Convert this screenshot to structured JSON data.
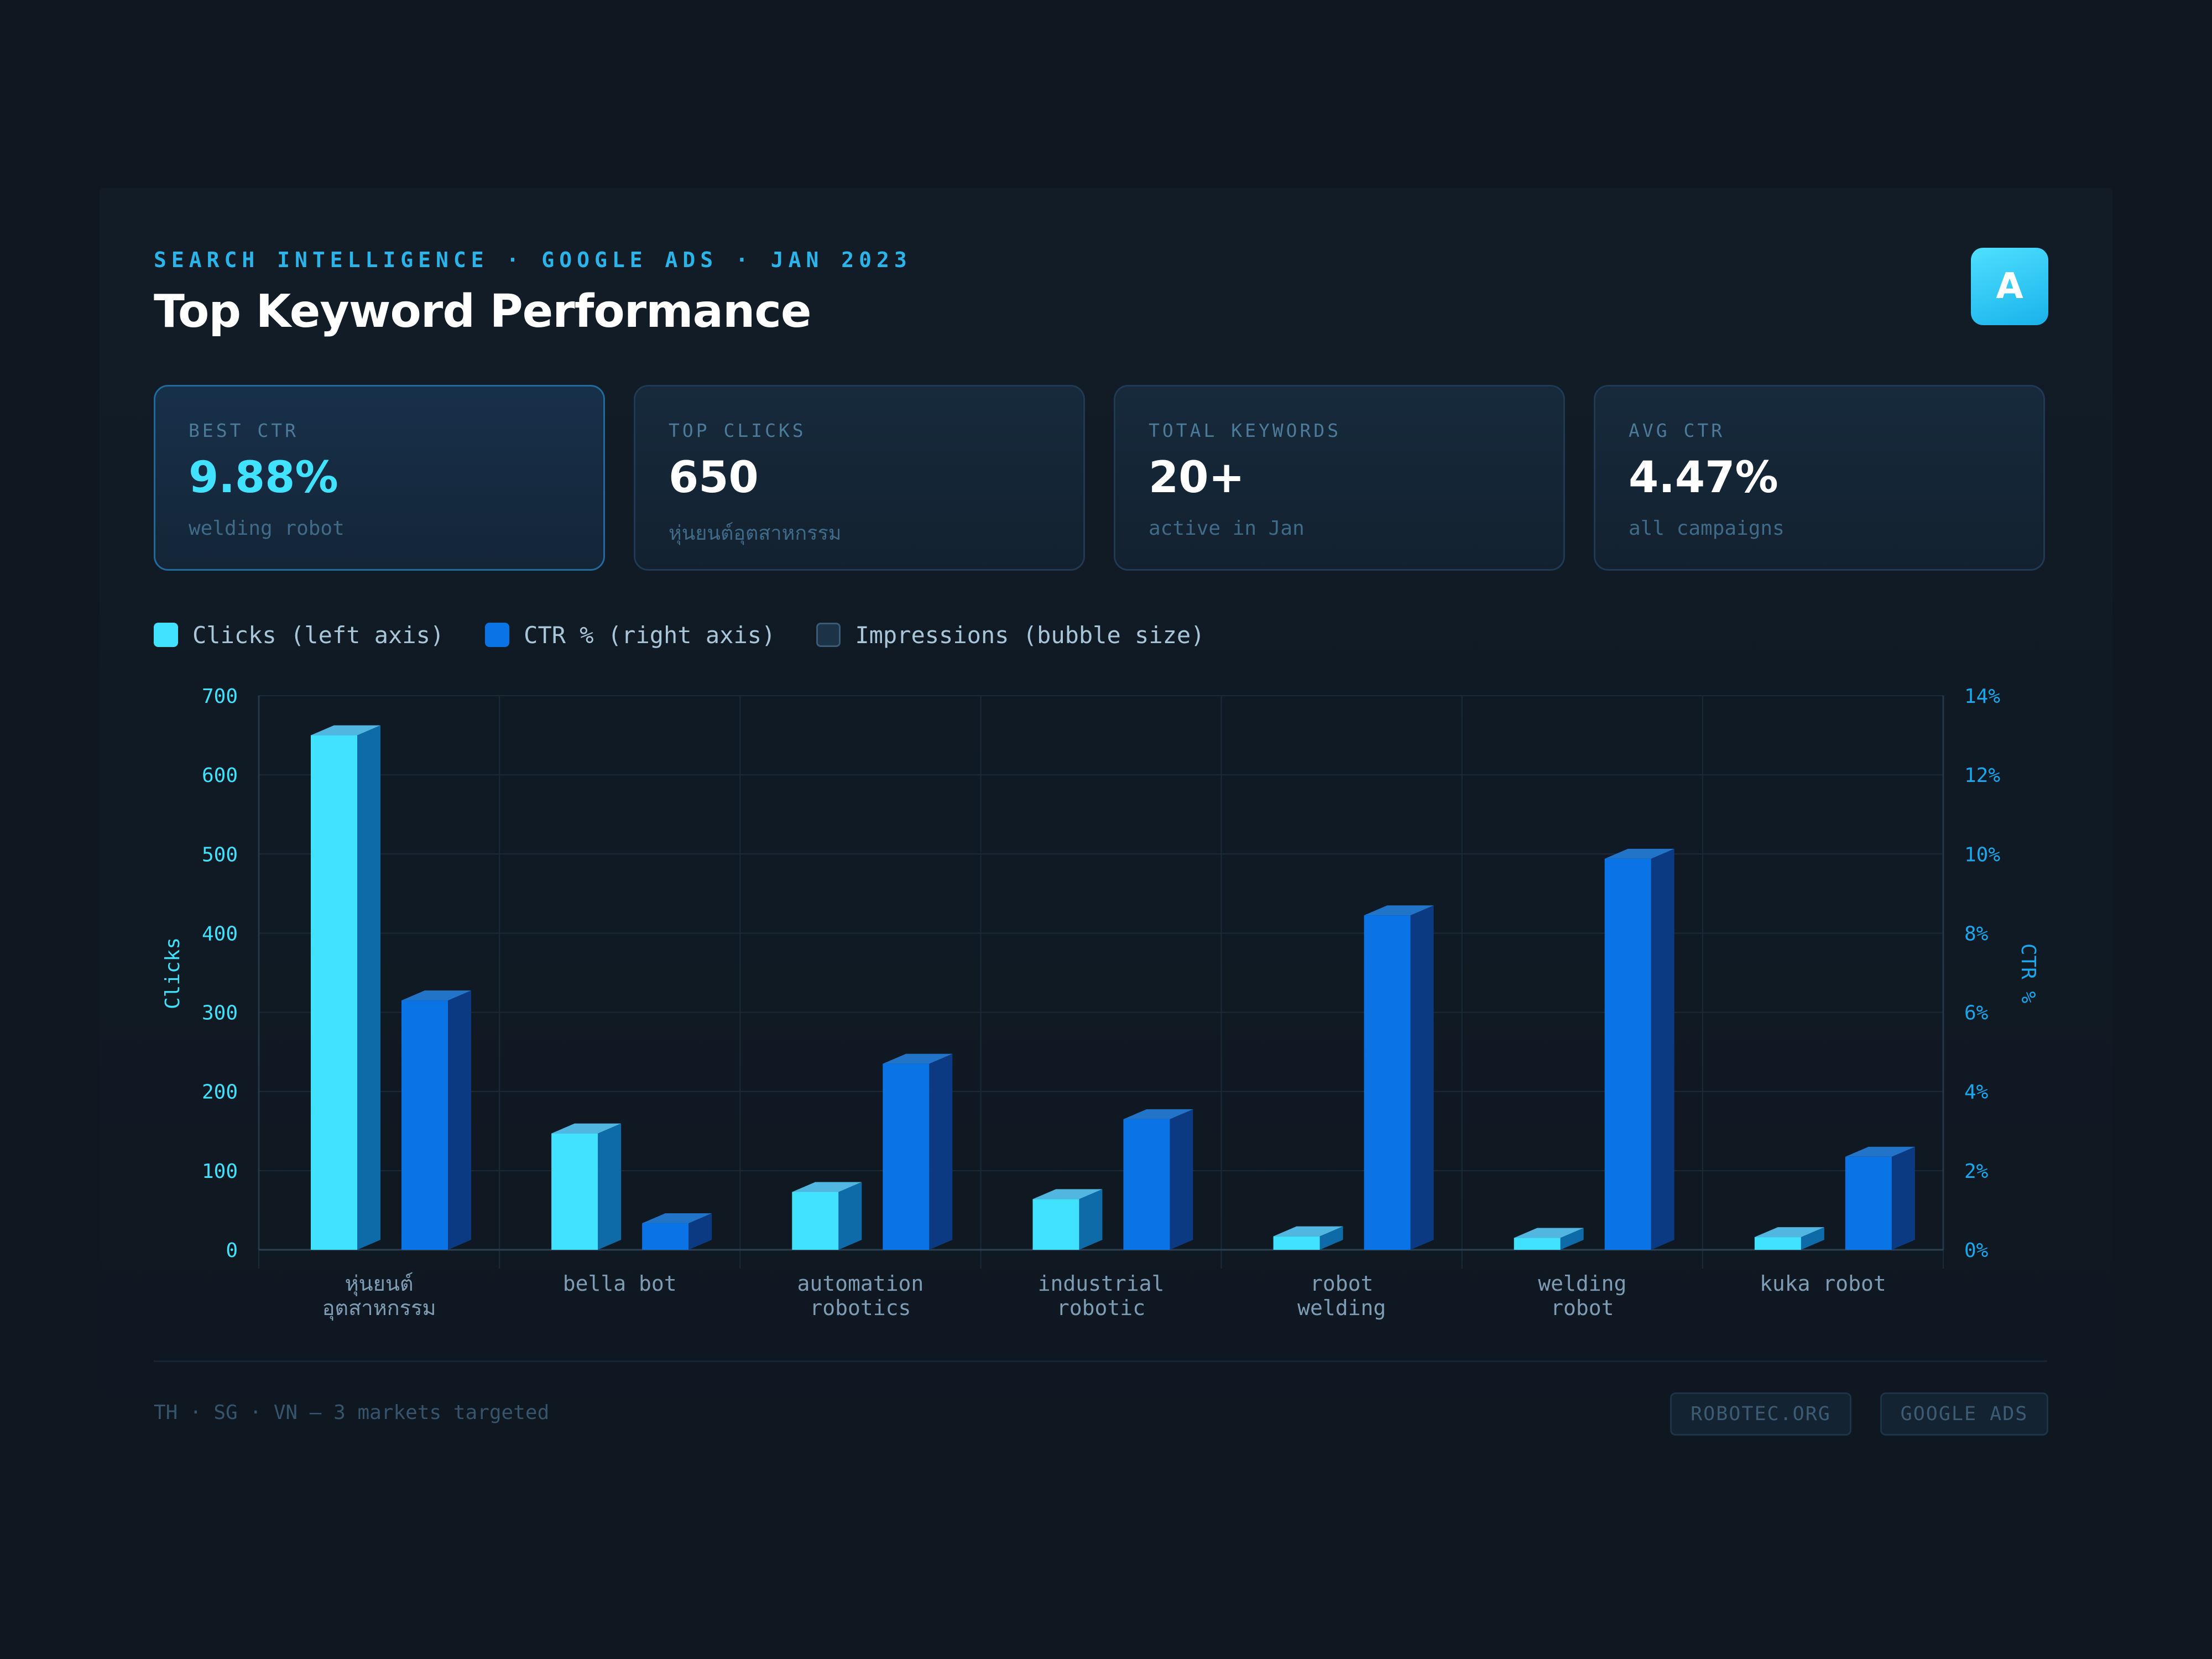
{
  "header": {
    "eyebrow": "SEARCH INTELLIGENCE · GOOGLE ADS · JAN 2023",
    "title": "Top Keyword Performance",
    "logo_letter": "A"
  },
  "cards": [
    {
      "label": "BEST CTR",
      "value": "9.88%",
      "sub": "welding robot",
      "highlight": true
    },
    {
      "label": "TOP CLICKS",
      "value": "650",
      "sub": "หุ่นยนต์อุตสาหกรรม",
      "highlight": false
    },
    {
      "label": "TOTAL KEYWORDS",
      "value": "20+",
      "sub": "active in Jan",
      "highlight": false
    },
    {
      "label": "AVG CTR",
      "value": "4.47%",
      "sub": "all campaigns",
      "highlight": false
    }
  ],
  "legend": [
    {
      "label": "Clicks (left axis)",
      "color": "#41e2ff"
    },
    {
      "label": "CTR % (right axis)",
      "color": "#0a74e6"
    },
    {
      "label": "Impressions (bubble size)",
      "color": "#1c3347"
    }
  ],
  "chart_data": {
    "type": "bar",
    "categories": [
      [
        "หุ่นยนต์",
        "อุตสาหกรรม"
      ],
      [
        "bella bot"
      ],
      [
        "automation",
        "robotics"
      ],
      [
        "industrial",
        "robotic"
      ],
      [
        "robot",
        "welding"
      ],
      [
        "welding",
        "robot"
      ],
      [
        "kuka robot"
      ]
    ],
    "series": [
      {
        "name": "Clicks",
        "axis": "left",
        "color": "#41e2ff",
        "values": [
          650,
          147,
          73,
          64,
          17,
          15,
          16
        ]
      },
      {
        "name": "CTR %",
        "axis": "right",
        "color": "#0a74e6",
        "values": [
          6.3,
          0.67,
          4.7,
          3.3,
          8.45,
          9.88,
          2.35
        ]
      }
    ],
    "ylabel": "Clicks",
    "ylabel_right": "CTR %",
    "ylim": [
      0,
      700
    ],
    "ylim_right": [
      0,
      14
    ],
    "yticks": [
      "0",
      "100",
      "200",
      "300",
      "400",
      "500",
      "600",
      "700"
    ],
    "yticks_right": [
      "0%",
      "2%",
      "4%",
      "6%",
      "8%",
      "10%",
      "12%",
      "14%"
    ],
    "grid": true,
    "legend_position": "top-left"
  },
  "footer": {
    "markets": "TH · SG · VN — 3 markets targeted",
    "tags": [
      "ROBOTEC.ORG",
      "GOOGLE ADS"
    ]
  }
}
